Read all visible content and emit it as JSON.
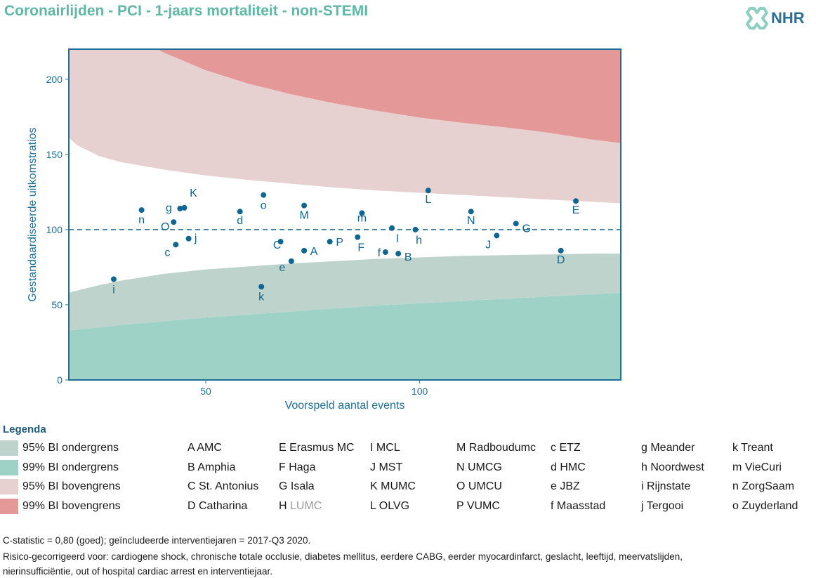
{
  "title": "Coronairlijden - PCI - 1-jaars mortaliteit - non-STEMI",
  "logo": {
    "text": "NHR",
    "icon": "nhr-heart-logo-icon"
  },
  "colors": {
    "title": "#5fb8a6",
    "axis": "#1f6f98",
    "point": "#0f6690",
    "band95_lower": "#bfd3cd",
    "band99_lower": "#9fd2c6",
    "band95_upper": "#e6d0d0",
    "band99_upper": "#e49898"
  },
  "chart_data": {
    "type": "scatter",
    "title": "",
    "xlabel": "Voorspeld aantal events",
    "ylabel": "Gestandaardiseerde uitkomstratios",
    "xlim": [
      18,
      147
    ],
    "ylim": [
      0,
      220
    ],
    "xticks": [
      50,
      100
    ],
    "yticks": [
      0,
      50,
      100,
      150,
      200
    ],
    "reference_line": 100,
    "bands_x": [
      18,
      20,
      25,
      30,
      40,
      50,
      60,
      70,
      80,
      90,
      100,
      110,
      120,
      130,
      140,
      147
    ],
    "lower99": [
      33,
      33.5,
      35,
      36.5,
      39,
      41.5,
      43.5,
      45.5,
      47.5,
      49.5,
      51,
      52.5,
      54,
      55.5,
      57,
      58
    ],
    "lower95": [
      58,
      59.5,
      63,
      66,
      70.5,
      73.5,
      75.5,
      77.5,
      79,
      80.5,
      81.5,
      82.5,
      83,
      83.5,
      84,
      84
    ],
    "upper95": [
      161,
      156,
      149,
      145,
      140,
      136,
      133,
      130.5,
      128,
      126,
      124.5,
      123,
      121.5,
      120,
      118.5,
      117.5
    ],
    "upper99": [
      272,
      258,
      245,
      234,
      218,
      206,
      197,
      190,
      184,
      179,
      174.5,
      171,
      168,
      164.5,
      160,
      157.5
    ],
    "points": [
      {
        "label": "A",
        "x": 73.0,
        "y": 86.0
      },
      {
        "label": "B",
        "x": 95.0,
        "y": 84.0
      },
      {
        "label": "C",
        "x": 67.5,
        "y": 92.0
      },
      {
        "label": "D",
        "x": 133.0,
        "y": 86.0
      },
      {
        "label": "E",
        "x": 136.5,
        "y": 119.0
      },
      {
        "label": "F",
        "x": 85.5,
        "y": 95.0
      },
      {
        "label": "G",
        "x": 122.5,
        "y": 104.0
      },
      {
        "label": "J",
        "x": 118.0,
        "y": 96.0
      },
      {
        "label": "K",
        "x": 45.0,
        "y": 114.5
      },
      {
        "label": "L",
        "x": 102.0,
        "y": 126.0
      },
      {
        "label": "M",
        "x": 73.0,
        "y": 116.0
      },
      {
        "label": "N",
        "x": 112.0,
        "y": 112.0
      },
      {
        "label": "O",
        "x": 42.5,
        "y": 105.0
      },
      {
        "label": "P",
        "x": 79.0,
        "y": 92.0
      },
      {
        "label": "c",
        "x": 43.0,
        "y": 90.0
      },
      {
        "label": "d",
        "x": 58.0,
        "y": 112.0
      },
      {
        "label": "e",
        "x": 70.0,
        "y": 79.0
      },
      {
        "label": "f",
        "x": 92.0,
        "y": 85.0
      },
      {
        "label": "g",
        "x": 44.0,
        "y": 114.0
      },
      {
        "label": "h",
        "x": 99.0,
        "y": 100.0
      },
      {
        "label": "i",
        "x": 28.5,
        "y": 67.0
      },
      {
        "label": "j",
        "x": 46.0,
        "y": 94.0
      },
      {
        "label": "k",
        "x": 63.0,
        "y": 62.0
      },
      {
        "label": "l",
        "x": 93.5,
        "y": 101.0
      },
      {
        "label": "m",
        "x": 86.5,
        "y": 111.0
      },
      {
        "label": "n",
        "x": 35.0,
        "y": 113.0
      },
      {
        "label": "o",
        "x": 63.5,
        "y": 123.0
      }
    ]
  },
  "legend": {
    "title": "Legenda",
    "bands": [
      {
        "label": "95% BI ondergrens",
        "color": "#bfd3cd"
      },
      {
        "label": "99% BI ondergrens",
        "color": "#9fd2c6"
      },
      {
        "label": "95% BI bovengrens",
        "color": "#e6d0d0"
      },
      {
        "label": "99% BI bovengrens",
        "color": "#e49898"
      }
    ],
    "columns": [
      [
        "A AMC",
        "B Amphia",
        "C St. Antonius",
        "D Catharina"
      ],
      [
        "E Erasmus MC",
        "F Haga",
        "G Isala",
        "H LUMC"
      ],
      [
        "I MCL",
        "J MST",
        "K MUMC",
        "L OLVG"
      ],
      [
        "M Radboudumc",
        "N UMCG",
        "O UMCU",
        "P VUMC"
      ],
      [
        "c ETZ",
        "d HMC",
        "e JBZ",
        "f Maasstad"
      ],
      [
        "g Meander",
        "h Noordwest",
        "i Rijnstate",
        "j Tergooi"
      ],
      [
        "k Treant",
        "m VieCuri",
        "n ZorgSaam",
        "o Zuyderland"
      ]
    ],
    "muted": [
      "H LUMC"
    ]
  },
  "footnotes": [
    "C-statistic = 0,80 (goed); geïncludeerde interventiejaren = 2017-Q3 2020.",
    "Risico-gecorrigeerd voor: cardiogene shock, chronische totale occlusie, diabetes mellitus, eerdere CABG, eerder myocardinfarct, geslacht, leeftijd, meervatslijden,",
    "nierinsufficiëntie, out of hospital cardiac arrest en interventiejaar."
  ]
}
